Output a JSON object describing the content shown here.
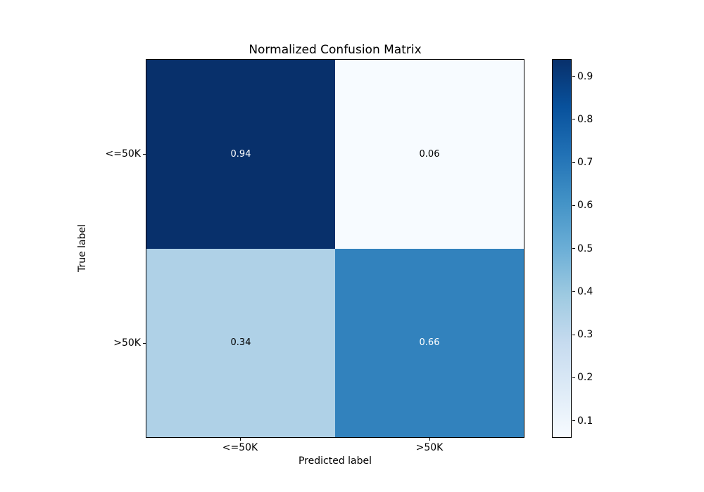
{
  "figure": {
    "background": "#ffffff"
  },
  "chart_data": {
    "type": "heatmap",
    "title": "Normalized Confusion Matrix",
    "xlabel": "Predicted label",
    "ylabel": "True label",
    "x_categories": [
      "<=50K",
      ">50K"
    ],
    "y_categories": [
      "<=50K",
      ">50K"
    ],
    "matrix": [
      [
        0.94,
        0.06
      ],
      [
        0.34,
        0.66
      ]
    ],
    "cells": [
      {
        "row": "<=50K",
        "col": "<=50K",
        "value": "0.94",
        "bg": "#08306b",
        "fg": "#ffffff"
      },
      {
        "row": "<=50K",
        "col": ">50K",
        "value": "0.06",
        "bg": "#f7fbff",
        "fg": "#000000"
      },
      {
        "row": ">50K",
        "col": "<=50K",
        "value": "0.34",
        "bg": "#afd1e7",
        "fg": "#000000"
      },
      {
        "row": ">50K",
        "col": ">50K",
        "value": "0.66",
        "bg": "#3282bd",
        "fg": "#ffffff"
      }
    ],
    "colorbar": {
      "colormap": "Blues",
      "vmin": 0.06,
      "vmax": 0.94,
      "ticks": [
        "0.9",
        "0.8",
        "0.7",
        "0.6",
        "0.5",
        "0.4",
        "0.3",
        "0.2",
        "0.1"
      ],
      "gradient_top_to_bottom": [
        "#08306b",
        "#08519c",
        "#2171b5",
        "#4292c6",
        "#6baed6",
        "#9ecae1",
        "#c6dbef",
        "#deebf7",
        "#f7fbff"
      ]
    },
    "grid": false,
    "legend": "colorbar-right"
  }
}
